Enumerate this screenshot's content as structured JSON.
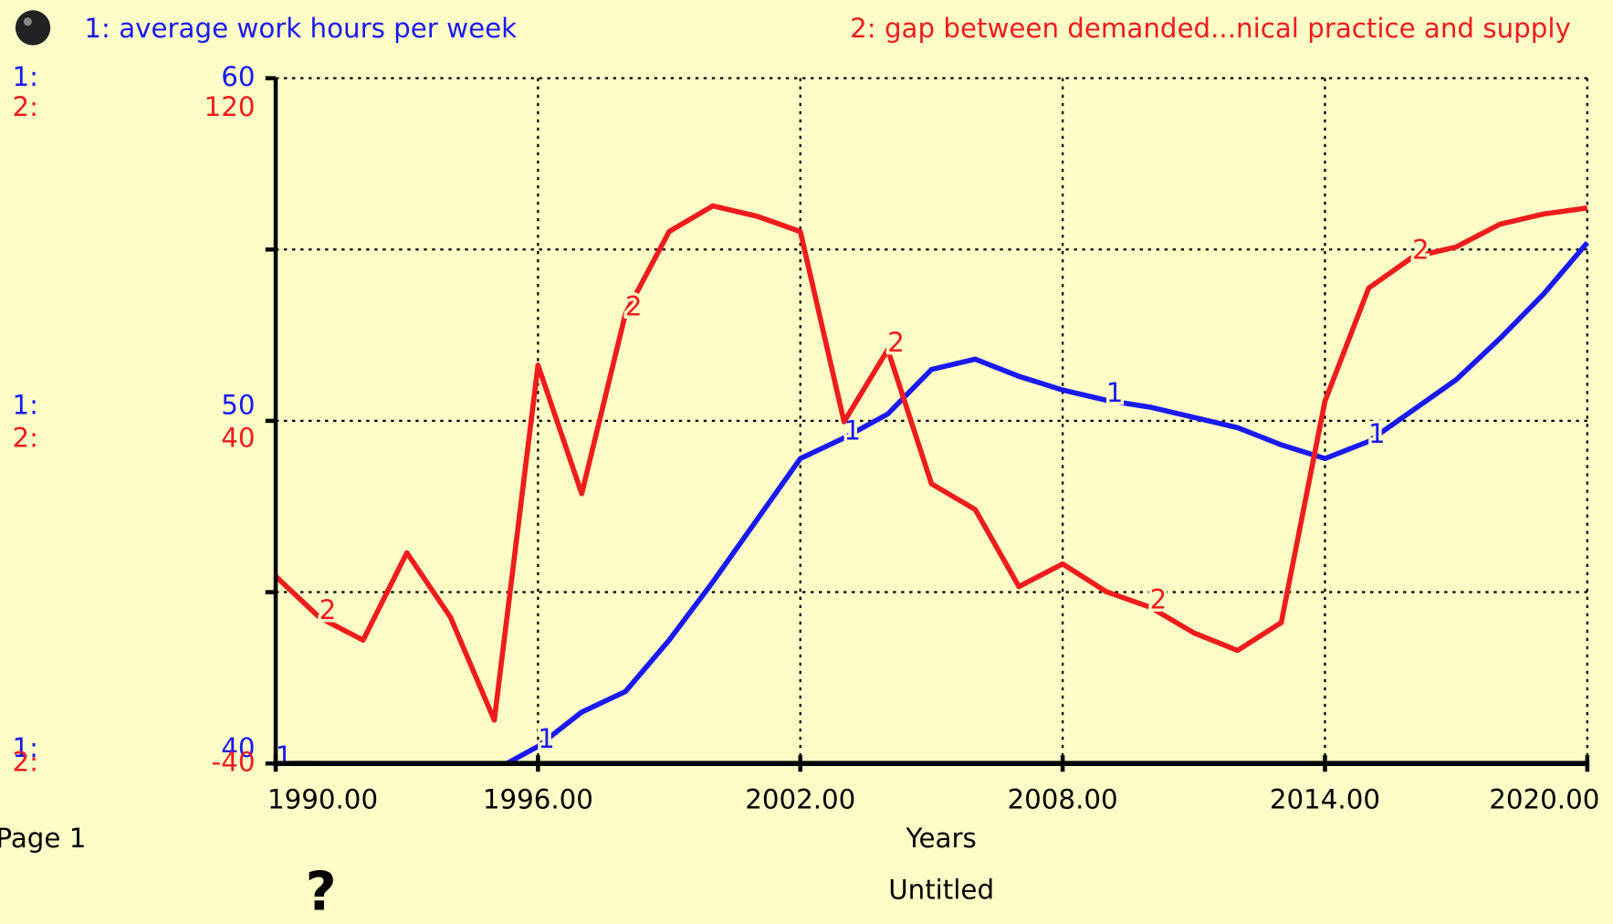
{
  "chart_data": {
    "type": "line",
    "title": "Untitled",
    "x_label": "Years",
    "page": "Page 1",
    "help": "?",
    "x": [
      1990,
      1991,
      1992,
      1993,
      1994,
      1995,
      1996,
      1997,
      1998,
      1999,
      2000,
      2001,
      2002,
      2003,
      2004,
      2005,
      2006,
      2007,
      2008,
      2009,
      2010,
      2011,
      2012,
      2013,
      2014,
      2015,
      2016,
      2017,
      2018,
      2019,
      2020
    ],
    "xlim": [
      1990,
      2020
    ],
    "xticks": [
      {
        "value": 1990,
        "label": "1990.00"
      },
      {
        "value": 1996,
        "label": "1996.00"
      },
      {
        "value": 2002,
        "label": "2002.00"
      },
      {
        "value": 2008,
        "label": "2008.00"
      },
      {
        "value": 2014,
        "label": "2014.00"
      },
      {
        "value": 2020,
        "label": "2020.00"
      }
    ],
    "ylim": [
      40,
      60
    ],
    "yticks": [
      40,
      50,
      60
    ],
    "ygrid": [
      40,
      45,
      50,
      55,
      60
    ],
    "y2lim": [
      -40,
      120
    ],
    "y2ticks": [
      -40,
      40,
      120
    ],
    "grid": true,
    "series": [
      {
        "name": "1: average work hours per week",
        "tag": "1:",
        "marker": "1",
        "color": "#1a1af0",
        "values": [
          40,
          40,
          39.5,
          39.2,
          39.3,
          39.8,
          40.5,
          41.5,
          42.1,
          43.6,
          45.3,
          47.1,
          48.9,
          49.5,
          50.2,
          51.5,
          51.8,
          51.3,
          50.9,
          50.6,
          50.4,
          50.1,
          49.8,
          49.3,
          48.9,
          49.4,
          50.3,
          51.2,
          52.4,
          53.7,
          55.2
        ]
      },
      {
        "name": "2: gap between demanded...nical practice and supply",
        "tag": "2:",
        "marker": "2",
        "color": "#ee1c1c",
        "axis": "y2",
        "values": [
          3.7,
          -5.9,
          -11.2,
          9.2,
          -5.9,
          -29.9,
          53,
          23,
          65,
          84.2,
          90.2,
          87.8,
          84.2,
          39.8,
          56.6,
          25.3,
          19.3,
          1.3,
          6.6,
          0.1,
          -3.5,
          -9.5,
          -13.6,
          -7.1,
          44.6,
          71,
          78.2,
          80.6,
          85.9,
          88.3,
          89.7
        ]
      }
    ]
  }
}
